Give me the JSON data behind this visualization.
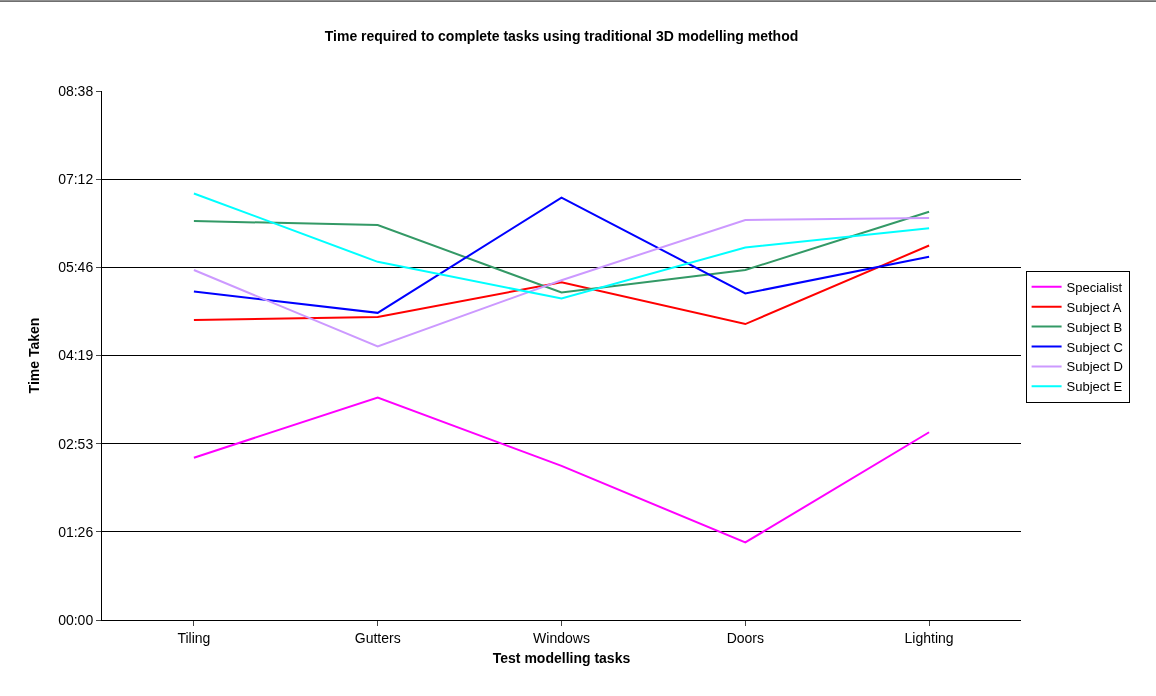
{
  "chart_data": {
    "type": "line",
    "title": "Time required to complete tasks using traditional 3D modelling method",
    "xlabel": "Test modelling tasks",
    "ylabel": "Time Taken",
    "categories": [
      "Tiling",
      "Gutters",
      "Windows",
      "Doors",
      "Lighting"
    ],
    "series": [
      {
        "name": "Specialist",
        "color": "#ff00ff",
        "values": [
          159,
          218,
          151,
          76,
          184
        ]
      },
      {
        "name": "Subject A",
        "color": "#ff0000",
        "values": [
          294,
          297,
          331,
          290,
          367
        ]
      },
      {
        "name": "Subject B",
        "color": "#339966",
        "values": [
          391,
          387,
          321,
          343,
          400
        ]
      },
      {
        "name": "Subject C",
        "color": "#0000ff",
        "values": [
          322,
          301,
          414,
          320,
          356
        ]
      },
      {
        "name": "Subject D",
        "color": "#cc99ff",
        "values": [
          343,
          268,
          333,
          392,
          394
        ]
      },
      {
        "name": "Subject E",
        "color": "#00ffff",
        "values": [
          418,
          351,
          315,
          365,
          384
        ]
      }
    ],
    "ylim": [
      0,
      518.4
    ],
    "yticks": [
      {
        "value": 0,
        "label": "00:00"
      },
      {
        "value": 86.4,
        "label": "01:26"
      },
      {
        "value": 172.8,
        "label": "02:53"
      },
      {
        "value": 259.2,
        "label": "04:19"
      },
      {
        "value": 345.6,
        "label": "05:46"
      },
      {
        "value": 432,
        "label": "07:12"
      },
      {
        "value": 518.4,
        "label": "08:38"
      }
    ],
    "grid": "y",
    "legend": "right",
    "marker": "none",
    "line_style": "solid"
  }
}
